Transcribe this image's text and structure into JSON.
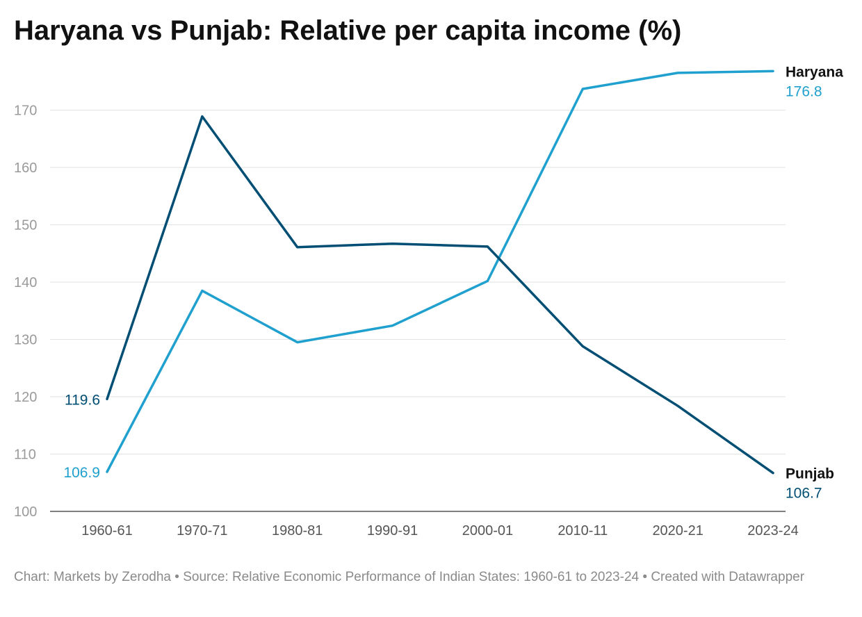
{
  "title": "Haryana vs Punjab: Relative per capita income (%)",
  "footer": {
    "credit": "Chart: Markets by Zerodha",
    "separator": " • ",
    "source": "Source: Relative Economic Performance of Indian States: 1960-61 to 2023-24",
    "created_with": "Created with Datawrapper"
  },
  "chart_data": {
    "type": "line",
    "title": "Haryana vs Punjab: Relative per capita income (%)",
    "xlabel": "",
    "ylabel": "",
    "categories": [
      "1960-61",
      "1970-71",
      "1980-81",
      "1990-91",
      "2000-01",
      "2010-11",
      "2020-21",
      "2023-24"
    ],
    "ylim": [
      100,
      177
    ],
    "yticks": [
      100,
      110,
      120,
      130,
      140,
      150,
      160,
      170
    ],
    "grid": true,
    "legend": "direct labels at line ends",
    "series": [
      {
        "name": "Haryana",
        "color": "#1fa0ce",
        "values": [
          106.9,
          138.5,
          129.5,
          132.4,
          140.2,
          173.7,
          176.5,
          176.8
        ],
        "start_label": "106.9",
        "end_label": "176.8"
      },
      {
        "name": "Punjab",
        "color": "#004e73",
        "values": [
          119.6,
          168.9,
          146.1,
          146.7,
          146.2,
          128.8,
          118.4,
          106.7
        ],
        "start_label": "119.6",
        "end_label": "106.7"
      }
    ]
  }
}
